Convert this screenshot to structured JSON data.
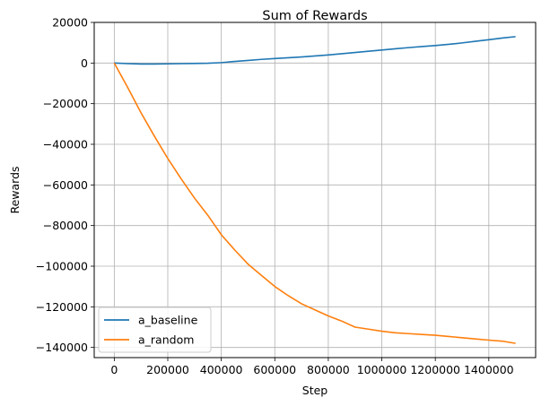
{
  "chart_data": {
    "type": "line",
    "title": "Sum of Rewards",
    "xlabel": "Step",
    "ylabel": "Rewards",
    "xlim": [
      -75000,
      1575000
    ],
    "ylim": [
      -145000,
      20000
    ],
    "x_ticks": [
      0,
      200000,
      400000,
      600000,
      800000,
      1000000,
      1200000,
      1400000
    ],
    "x_tick_labels": [
      "0",
      "200000",
      "400000",
      "600000",
      "800000",
      "1000000",
      "1200000",
      "1400000"
    ],
    "y_ticks": [
      20000,
      0,
      -20000,
      -40000,
      -60000,
      -80000,
      -100000,
      -120000,
      -140000
    ],
    "y_tick_labels": [
      "20000",
      "0",
      "−20000",
      "−40000",
      "−60000",
      "−80000",
      "−100000",
      "−120000",
      "−140000"
    ],
    "grid": true,
    "legend_position": "lower-left",
    "series": [
      {
        "name": "a_baseline",
        "color": "#1f77b4",
        "x": [
          0,
          50000,
          100000,
          150000,
          200000,
          250000,
          300000,
          350000,
          400000,
          450000,
          500000,
          550000,
          600000,
          650000,
          700000,
          750000,
          800000,
          850000,
          900000,
          950000,
          1000000,
          1050000,
          1100000,
          1150000,
          1200000,
          1250000,
          1300000,
          1350000,
          1400000,
          1450000,
          1500000
        ],
        "y": [
          0,
          -300,
          -500,
          -500,
          -400,
          -300,
          -200,
          -100,
          200,
          800,
          1300,
          1800,
          2200,
          2600,
          3000,
          3500,
          4000,
          4600,
          5200,
          5800,
          6400,
          7000,
          7600,
          8100,
          8600,
          9200,
          9900,
          10700,
          11500,
          12300,
          13000
        ]
      },
      {
        "name": "a_random",
        "color": "#ff7f0e",
        "x": [
          0,
          50000,
          100000,
          150000,
          200000,
          250000,
          300000,
          350000,
          400000,
          450000,
          500000,
          550000,
          600000,
          650000,
          700000,
          750000,
          800000,
          850000,
          900000,
          950000,
          1000000,
          1050000,
          1100000,
          1150000,
          1200000,
          1250000,
          1300000,
          1350000,
          1400000,
          1450000,
          1500000
        ],
        "y": [
          0,
          -12000,
          -24500,
          -36000,
          -47000,
          -57000,
          -66500,
          -75000,
          -84500,
          -92000,
          -99000,
          -104500,
          -110000,
          -114500,
          -118500,
          -121500,
          -124500,
          -127000,
          -130000,
          -131000,
          -132000,
          -132800,
          -133200,
          -133600,
          -134000,
          -134600,
          -135200,
          -135800,
          -136400,
          -136900,
          -138000
        ]
      }
    ]
  }
}
